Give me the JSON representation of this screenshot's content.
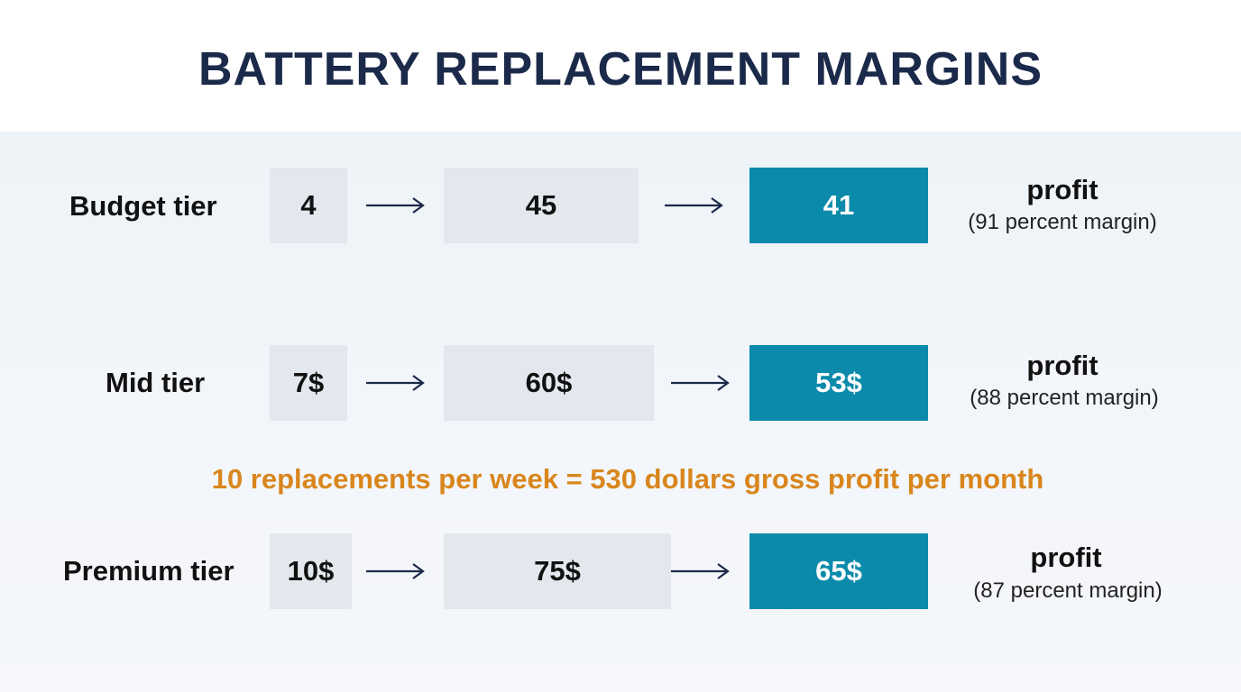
{
  "title": "BATTERY REPLACEMENT MARGINS",
  "tiers": [
    {
      "label": "Budget tier",
      "cost": "4",
      "price": "45",
      "profit": "41",
      "profit_label": "profit",
      "margin_text": "(91 percent margin)"
    },
    {
      "label": "Mid tier",
      "cost": "7$",
      "price": "60$",
      "profit": "53$",
      "profit_label": "profit",
      "margin_text": "(88 percent margin)"
    },
    {
      "label": "Premium tier",
      "cost": "10$",
      "price": "75$",
      "profit": "65$",
      "profit_label": "profit",
      "margin_text": "(87 percent margin)"
    }
  ],
  "summary": "10 replacements per week = 530 dollars gross profit per month",
  "colors": {
    "title": "#1b2a4a",
    "profit_box": "#0b8aab",
    "value_box": "#e3e8ee",
    "summary": "#d9861d",
    "arrow": "#1b2a4a"
  },
  "icons": {
    "flow_arrow": "right-arrow-icon"
  }
}
